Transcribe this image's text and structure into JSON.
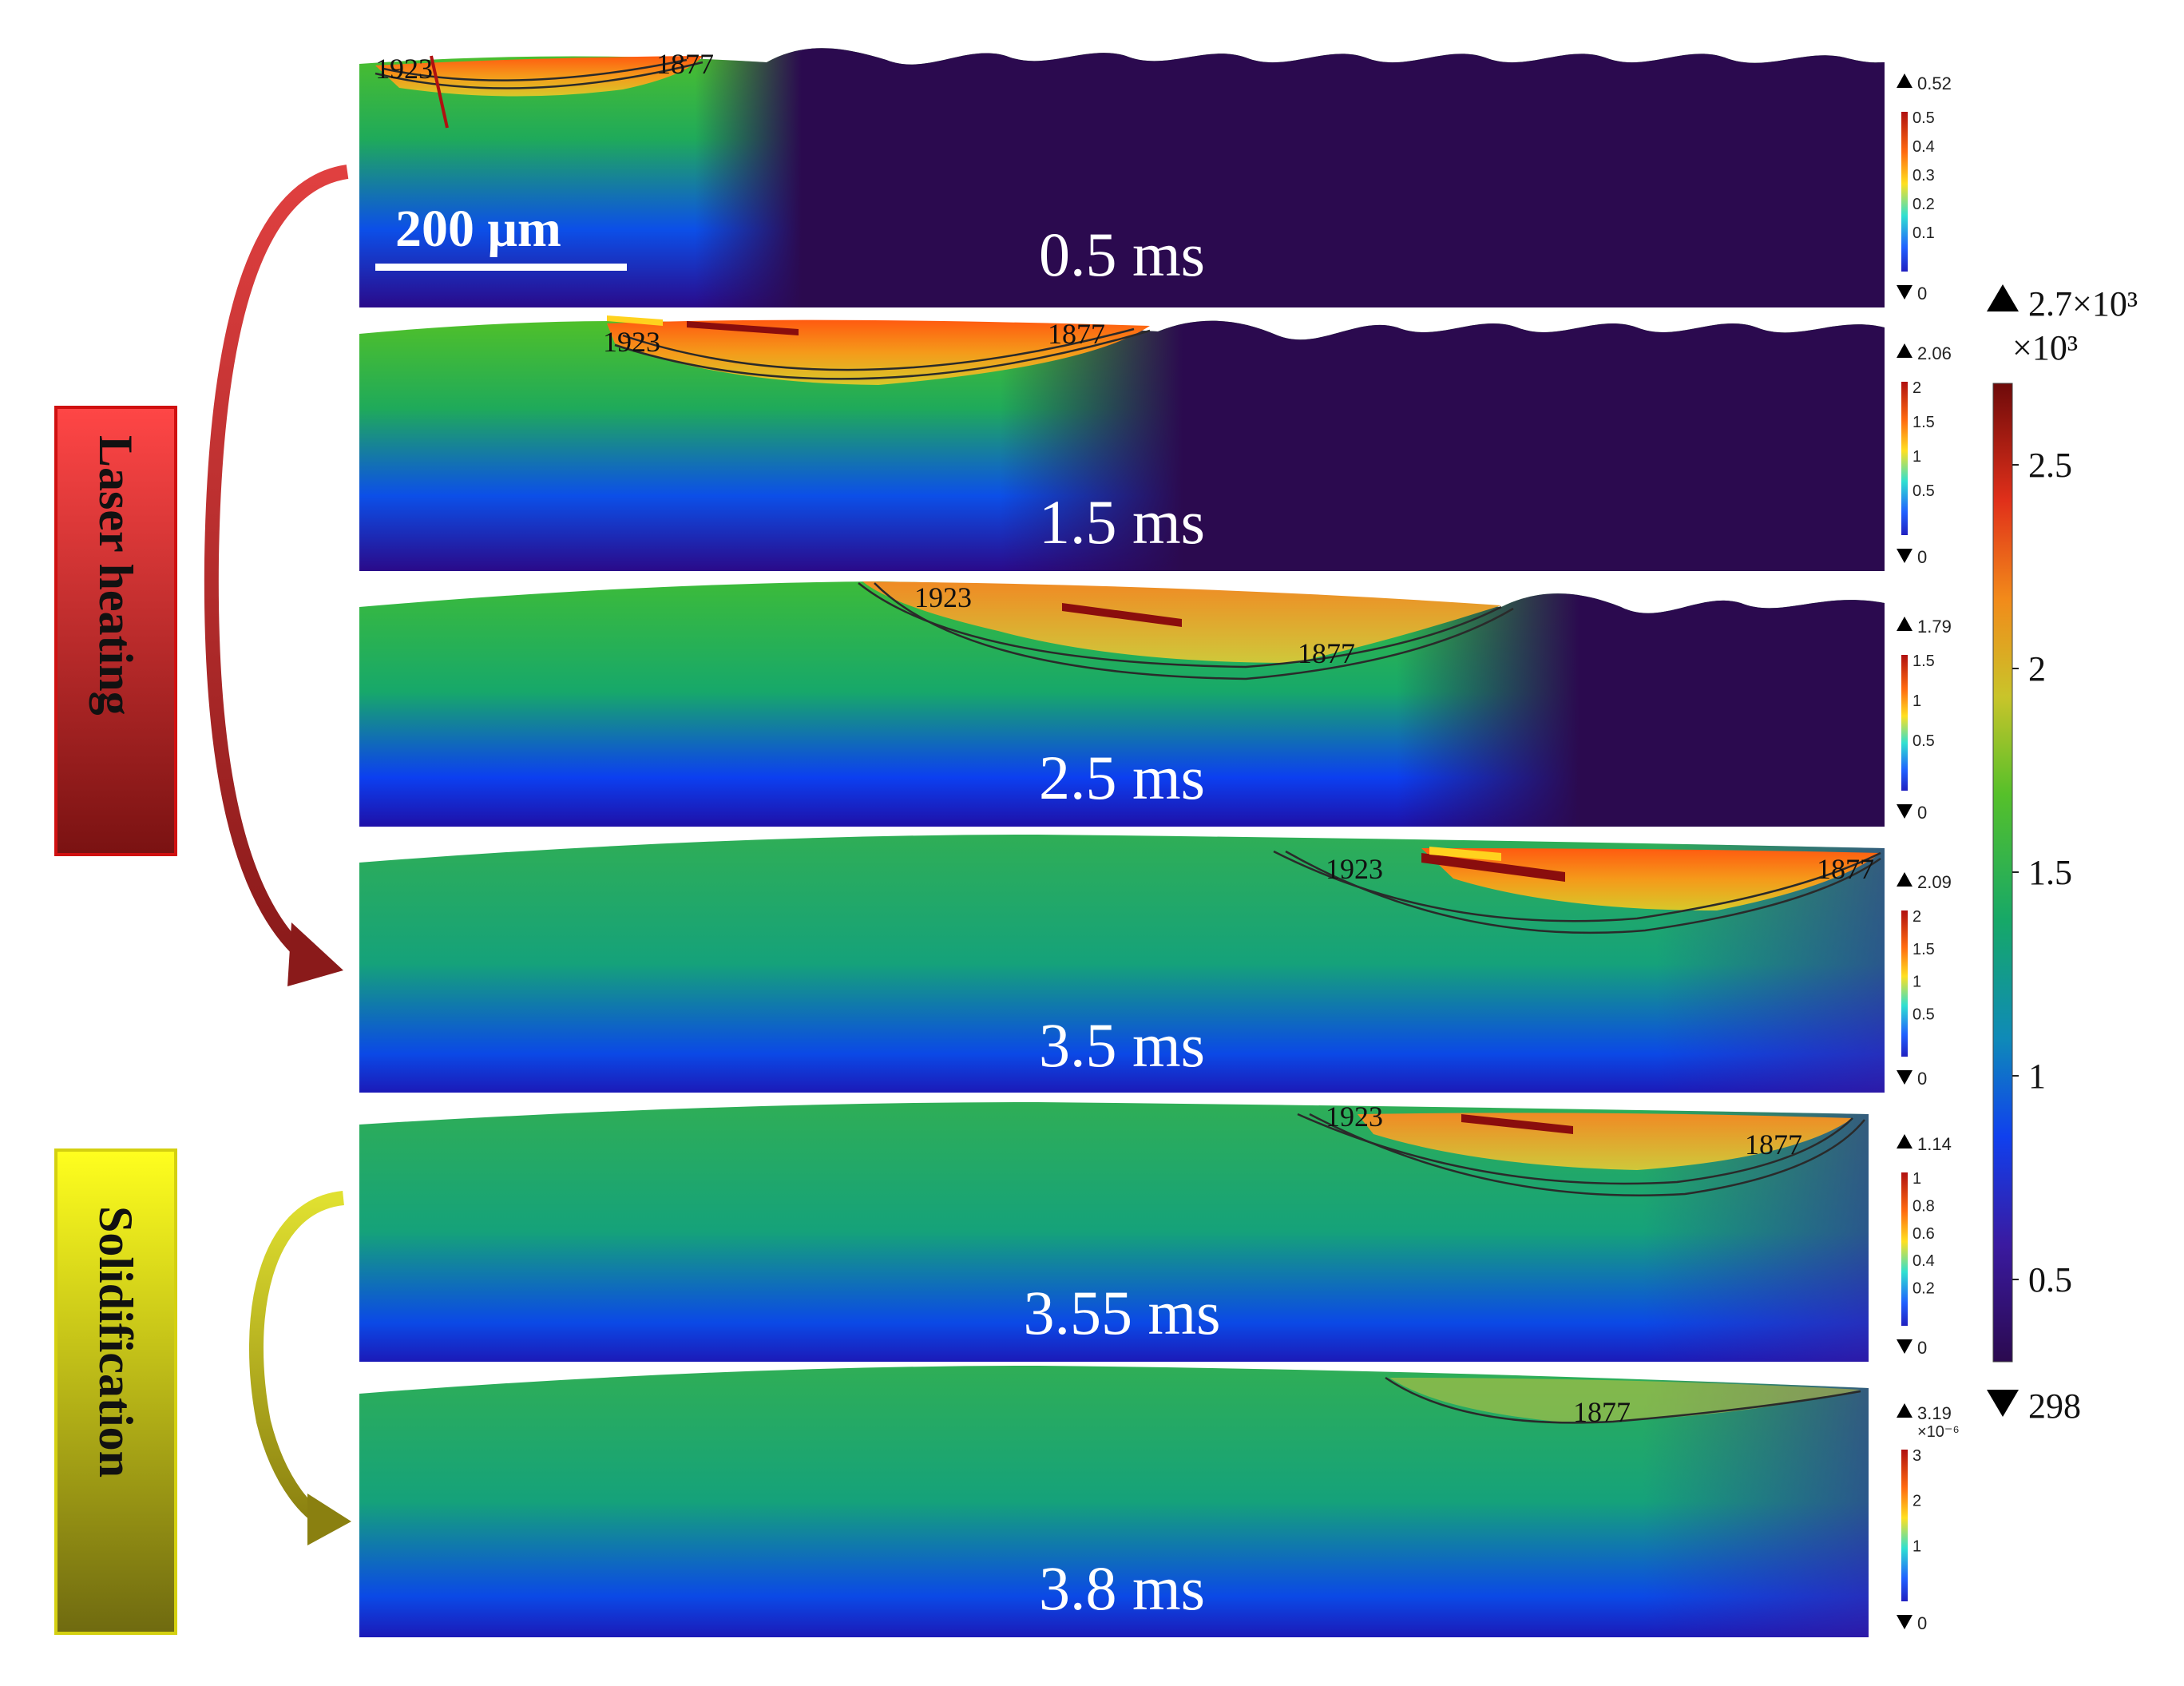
{
  "scale_bar": {
    "label": "200 μm"
  },
  "phases": [
    {
      "label": "Laser heating",
      "color_top": "#ff4646",
      "color_bottom": "#7a1212"
    },
    {
      "label": "Solidification",
      "color_top": "#ffff1e",
      "color_bottom": "#6f6a10"
    }
  ],
  "panels": [
    {
      "time": "0.5 ms",
      "iso_a": "1923",
      "iso_b": "1877",
      "max": "0.52",
      "ticks": [
        "0.5",
        "0.4",
        "0.3",
        "0.2",
        "0.1"
      ],
      "min": "0",
      "exp": ""
    },
    {
      "time": "1.5 ms",
      "iso_a": "1923",
      "iso_b": "1877",
      "max": "2.06",
      "ticks": [
        "2",
        "1.5",
        "1",
        "0.5"
      ],
      "min": "0",
      "exp": ""
    },
    {
      "time": "2.5 ms",
      "iso_a": "1923",
      "iso_b": "1877",
      "max": "1.79",
      "ticks": [
        "1.5",
        "1",
        "0.5"
      ],
      "min": "0",
      "exp": ""
    },
    {
      "time": "3.5 ms",
      "iso_a": "1923",
      "iso_b": "1877",
      "max": "2.09",
      "ticks": [
        "2",
        "1.5",
        "1",
        "0.5"
      ],
      "min": "0",
      "exp": ""
    },
    {
      "time": "3.55 ms",
      "iso_a": "1923",
      "iso_b": "1877",
      "max": "1.14",
      "ticks": [
        "1",
        "0.8",
        "0.6",
        "0.4",
        "0.2"
      ],
      "min": "0",
      "exp": ""
    },
    {
      "time": "3.8 ms",
      "iso_a": "",
      "iso_b": "1877",
      "max": "3.19",
      "ticks": [
        "3",
        "2",
        "1"
      ],
      "min": "0",
      "exp": "×10⁻⁶"
    }
  ],
  "temperature_bar": {
    "max_label": "2.7×10³",
    "multiplier": "×10³",
    "ticks": [
      "2.5",
      "2",
      "1.5",
      "1",
      "0.5"
    ],
    "min_label": "298"
  }
}
